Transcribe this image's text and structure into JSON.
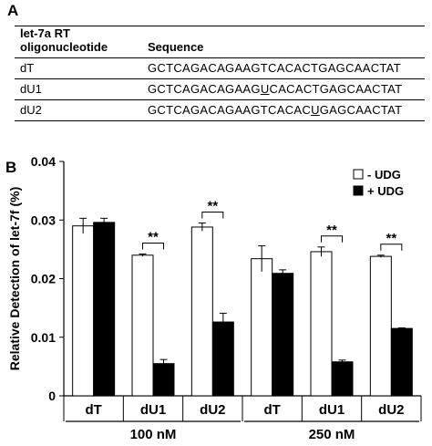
{
  "panels": {
    "a": "A",
    "b": "B"
  },
  "table": {
    "headers": [
      "let-7a RT oligonucleotide",
      "Sequence"
    ],
    "rows": [
      {
        "name": "dT",
        "seq": [
          "GCTCAGACAGAAGTCACACTGAGCAACTAT"
        ]
      },
      {
        "name": "dU1",
        "seq": [
          "GCTCAGACAGAAG",
          "U",
          "CACACTGAGCAACTAT"
        ]
      },
      {
        "name": "dU2",
        "seq": [
          "GCTCAGACAGAAGTCACAC",
          "U",
          "GAGCAACTAT"
        ]
      }
    ]
  },
  "chart_data": {
    "type": "bar",
    "title": "",
    "ylabel": "Relative Detection of let-7f (%)",
    "ylim": [
      0,
      0.04
    ],
    "yticks": [
      "0",
      "0.01",
      "0.02",
      "0.03",
      "0.04"
    ],
    "categories": [
      "dT",
      "dU1",
      "dU2",
      "dT",
      "dU1",
      "dU2"
    ],
    "groups": [
      {
        "label": "100 nM",
        "categories": [
          0,
          1,
          2
        ]
      },
      {
        "label": "250 nM",
        "categories": [
          3,
          4,
          5
        ]
      }
    ],
    "series": [
      {
        "name": "- UDG",
        "values": [
          0.029,
          0.024,
          0.0288,
          0.0234,
          0.0246,
          0.0238
        ],
        "errors": [
          0.0013,
          0.0002,
          0.0007,
          0.0022,
          0.0008,
          0.0002
        ],
        "color": "#ffffff"
      },
      {
        "name": "+ UDG",
        "values": [
          0.0296,
          0.0055,
          0.0126,
          0.0209,
          0.0058,
          0.0115
        ],
        "errors": [
          0.0007,
          0.0007,
          0.0015,
          0.0006,
          0.0003,
          0.0001
        ],
        "color": "#000000"
      }
    ],
    "significance": [
      {
        "category": 1,
        "label": "**"
      },
      {
        "category": 2,
        "label": "**"
      },
      {
        "category": 4,
        "label": "**"
      },
      {
        "category": 5,
        "label": "**"
      }
    ],
    "legend_position": "top-right",
    "grid": false
  }
}
